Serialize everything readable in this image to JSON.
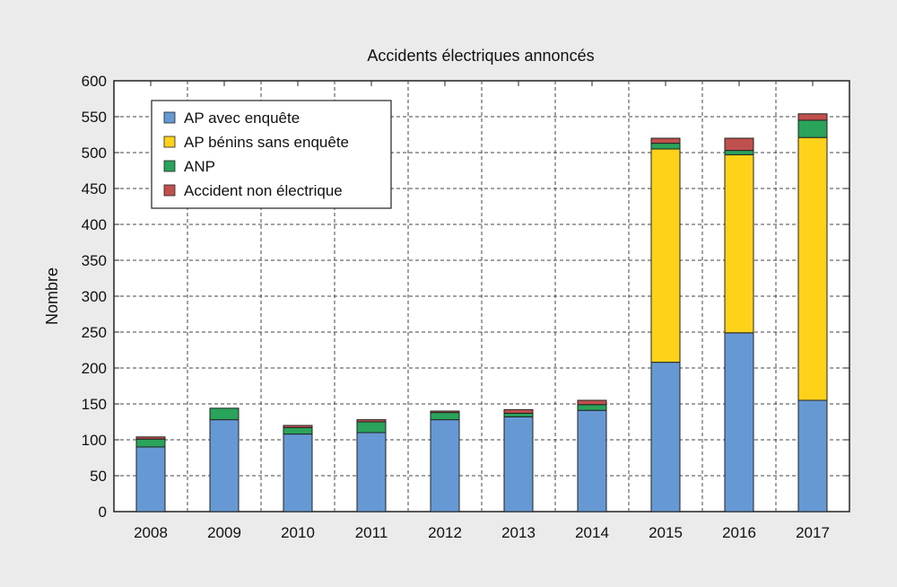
{
  "chart_data": {
    "type": "bar",
    "stacked": true,
    "title": "Accidents électriques annoncés",
    "xlabel": "",
    "ylabel": "Nombre",
    "ylim": [
      0,
      600
    ],
    "yticks": [
      0,
      50,
      100,
      150,
      200,
      250,
      300,
      350,
      400,
      450,
      500,
      550,
      600
    ],
    "grid": true,
    "legend_position": "top-left",
    "categories": [
      "2008",
      "2009",
      "2010",
      "2011",
      "2012",
      "2013",
      "2014",
      "2015",
      "2016",
      "2017"
    ],
    "series": [
      {
        "name": "AP avec enquête",
        "color": "#6699d4",
        "values": [
          90,
          128,
          108,
          110,
          128,
          132,
          141,
          208,
          249,
          155
        ]
      },
      {
        "name": "AP bénins sans enquête",
        "color": "#ffd21a",
        "values": [
          0,
          0,
          0,
          0,
          0,
          0,
          0,
          297,
          248,
          366
        ]
      },
      {
        "name": "ANP",
        "color": "#2aa35b",
        "values": [
          11,
          16,
          9,
          15,
          10,
          5,
          8,
          8,
          6,
          24
        ]
      },
      {
        "name": "Accident non électrique",
        "color": "#c0504d",
        "values": [
          3,
          0,
          3,
          3,
          2,
          5,
          6,
          7,
          17,
          9
        ]
      }
    ]
  }
}
